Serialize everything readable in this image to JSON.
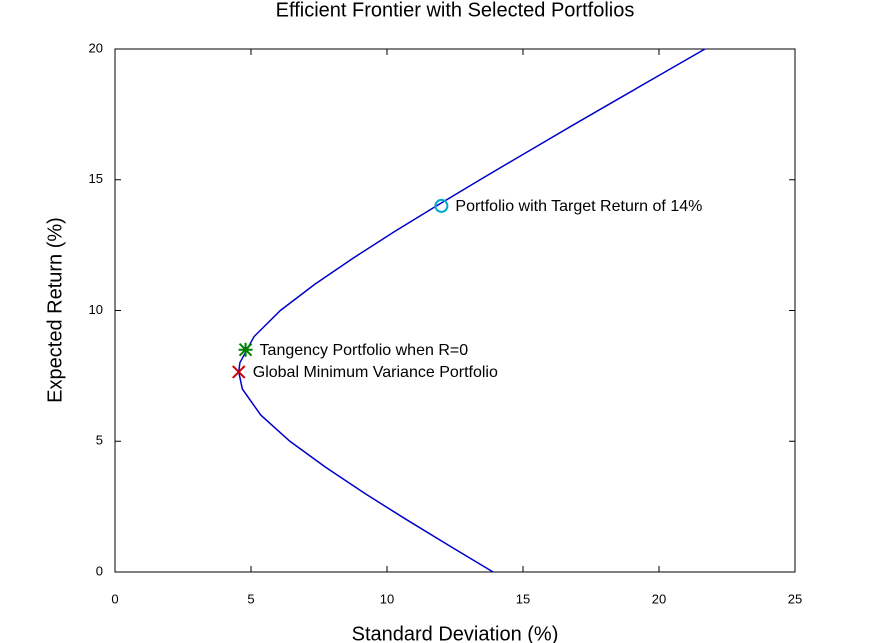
{
  "chart_data": {
    "type": "line",
    "title": "Efficient Frontier with Selected Portfolios",
    "xlabel": "Standard Deviation (%)",
    "ylabel": "Expected Return (%)",
    "xlim": [
      0,
      25
    ],
    "ylim": [
      0,
      20
    ],
    "xticks": [
      0,
      5,
      10,
      15,
      20,
      25
    ],
    "yticks": [
      0,
      5,
      10,
      15,
      20
    ],
    "grid": false,
    "series": [
      {
        "color": "#0000cc",
        "x": [
          13.9,
          12.3,
          10.72,
          9.19,
          7.75,
          6.43,
          5.36,
          4.68,
          4.55,
          4.59,
          5.11,
          6.08,
          7.34,
          8.75,
          10.25,
          11.82,
          13.42,
          15.05,
          16.69,
          18.35,
          20.02,
          21.69
        ],
        "values": [
          0,
          1,
          2,
          3,
          4,
          5,
          6,
          7,
          7.65,
          8,
          9,
          10,
          11,
          12,
          13,
          14,
          15,
          16,
          17,
          18,
          19,
          20
        ]
      }
    ],
    "points": [
      {
        "name": "Global Minimum Variance Portfolio",
        "x": 4.55,
        "y": 7.65,
        "marker": "x",
        "color": "#cc0000"
      },
      {
        "name": "Tangency Portfolio when R=0",
        "x": 4.8,
        "y": 8.5,
        "marker": "asterisk",
        "color": "#008000"
      },
      {
        "name": "Portfolio with Target Return of 14%",
        "x": 12.0,
        "y": 14,
        "marker": "circle",
        "color": "#00aacc"
      }
    ]
  }
}
